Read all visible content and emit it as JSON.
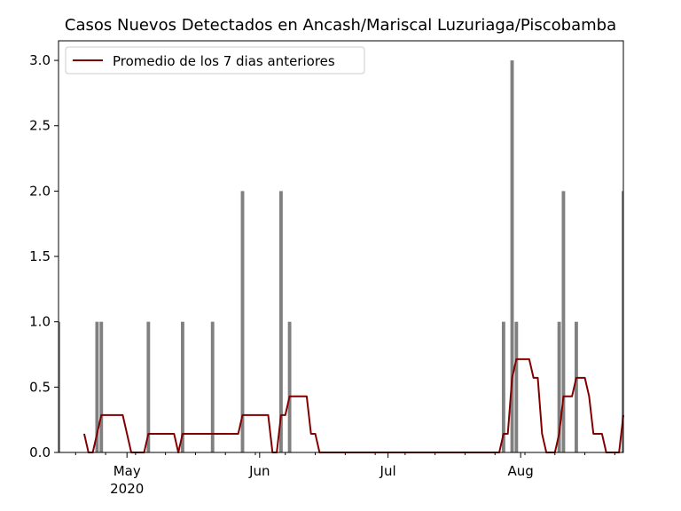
{
  "chart_data": {
    "type": "bar",
    "title": "Casos Nuevos Detectados en Ancash/Mariscal Luzuriaga/Piscobamba",
    "xlabel": "",
    "ylabel": "",
    "x_range": [
      "2020-04-15",
      "2020-08-25"
    ],
    "ylim": [
      0,
      3.15
    ],
    "y_ticks": [
      "0.0",
      "0.5",
      "1.0",
      "1.5",
      "2.0",
      "2.5",
      "3.0"
    ],
    "y_tick_values": [
      0,
      0.5,
      1.0,
      1.5,
      2.0,
      2.5,
      3.0
    ],
    "x_ticks": [
      {
        "date": "2020-05-01",
        "label": "May",
        "sublabel": "2020"
      },
      {
        "date": "2020-06-01",
        "label": "Jun",
        "sublabel": ""
      },
      {
        "date": "2020-07-01",
        "label": "Jul",
        "sublabel": ""
      },
      {
        "date": "2020-08-01",
        "label": "Aug",
        "sublabel": ""
      }
    ],
    "bar_color": "#808080",
    "line_color": "#800000",
    "legend_position": "upper-left",
    "grid": false,
    "bars": [
      {
        "date": "2020-04-15",
        "value": 1
      },
      {
        "date": "2020-04-24",
        "value": 1
      },
      {
        "date": "2020-04-25",
        "value": 1
      },
      {
        "date": "2020-05-06",
        "value": 1
      },
      {
        "date": "2020-05-14",
        "value": 1
      },
      {
        "date": "2020-05-21",
        "value": 1
      },
      {
        "date": "2020-05-28",
        "value": 2
      },
      {
        "date": "2020-06-06",
        "value": 2
      },
      {
        "date": "2020-06-08",
        "value": 1
      },
      {
        "date": "2020-07-28",
        "value": 1
      },
      {
        "date": "2020-07-30",
        "value": 3
      },
      {
        "date": "2020-07-31",
        "value": 1
      },
      {
        "date": "2020-08-10",
        "value": 1
      },
      {
        "date": "2020-08-11",
        "value": 2
      },
      {
        "date": "2020-08-14",
        "value": 1
      },
      {
        "date": "2020-08-25",
        "value": 2
      }
    ],
    "series": [
      {
        "name": "Promedio de los 7 dias anteriores",
        "points": [
          [
            "2020-04-21",
            0.143
          ],
          [
            "2020-04-22",
            0.0
          ],
          [
            "2020-04-23",
            0.0
          ],
          [
            "2020-04-24",
            0.143
          ],
          [
            "2020-04-25",
            0.286
          ],
          [
            "2020-04-30",
            0.286
          ],
          [
            "2020-05-01",
            0.143
          ],
          [
            "2020-05-02",
            0.0
          ],
          [
            "2020-05-05",
            0.0
          ],
          [
            "2020-05-06",
            0.143
          ],
          [
            "2020-05-12",
            0.143
          ],
          [
            "2020-05-13",
            0.0
          ],
          [
            "2020-05-14",
            0.143
          ],
          [
            "2020-05-27",
            0.143
          ],
          [
            "2020-05-28",
            0.286
          ],
          [
            "2020-06-03",
            0.286
          ],
          [
            "2020-06-04",
            0.0
          ],
          [
            "2020-06-05",
            0.0
          ],
          [
            "2020-06-06",
            0.286
          ],
          [
            "2020-06-07",
            0.286
          ],
          [
            "2020-06-08",
            0.429
          ],
          [
            "2020-06-12",
            0.429
          ],
          [
            "2020-06-13",
            0.143
          ],
          [
            "2020-06-14",
            0.143
          ],
          [
            "2020-06-15",
            0.0
          ],
          [
            "2020-07-27",
            0.0
          ],
          [
            "2020-07-28",
            0.143
          ],
          [
            "2020-07-29",
            0.143
          ],
          [
            "2020-07-30",
            0.571
          ],
          [
            "2020-07-31",
            0.714
          ],
          [
            "2020-08-03",
            0.714
          ],
          [
            "2020-08-04",
            0.571
          ],
          [
            "2020-08-05",
            0.571
          ],
          [
            "2020-08-06",
            0.143
          ],
          [
            "2020-08-07",
            0.0
          ],
          [
            "2020-08-09",
            0.0
          ],
          [
            "2020-08-10",
            0.143
          ],
          [
            "2020-08-11",
            0.429
          ],
          [
            "2020-08-13",
            0.429
          ],
          [
            "2020-08-14",
            0.571
          ],
          [
            "2020-08-16",
            0.571
          ],
          [
            "2020-08-17",
            0.429
          ],
          [
            "2020-08-18",
            0.143
          ],
          [
            "2020-08-20",
            0.143
          ],
          [
            "2020-08-21",
            0.0
          ],
          [
            "2020-08-24",
            0.0
          ],
          [
            "2020-08-25",
            0.286
          ]
        ]
      }
    ]
  }
}
